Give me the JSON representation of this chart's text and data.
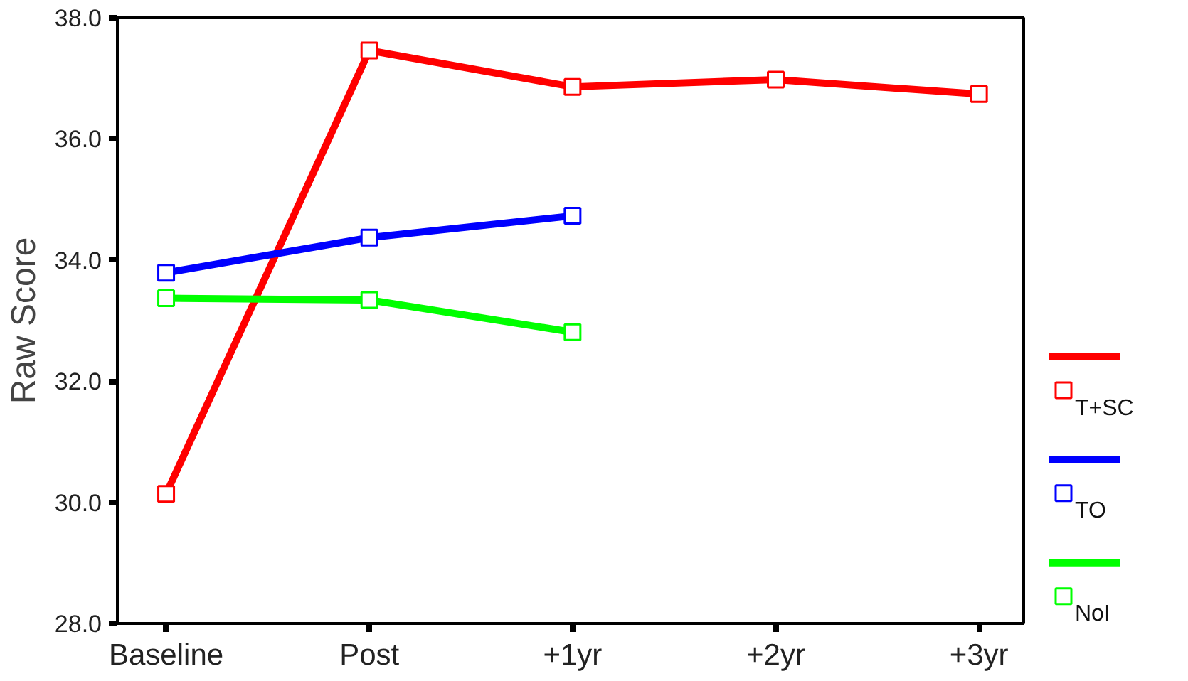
{
  "chart_data": {
    "type": "line",
    "ylabel": "Raw Score",
    "categories": [
      "Baseline",
      "Post",
      "+1yr",
      "+2yr",
      "+3yr"
    ],
    "series": [
      {
        "name": "T+SC",
        "color": "#ff0000",
        "values": [
          30.14,
          37.46,
          36.86,
          36.98,
          36.74
        ]
      },
      {
        "name": "TO",
        "color": "#0000ff",
        "values": [
          33.79,
          34.37,
          34.73,
          null,
          null
        ]
      },
      {
        "name": "NoI",
        "color": "#00ff00",
        "values": [
          33.37,
          33.34,
          32.81,
          null,
          null
        ]
      }
    ],
    "ylim": [
      28,
      38
    ],
    "yticks": [
      {
        "value": 28,
        "label": "28.0"
      },
      {
        "value": 30,
        "label": "30.0"
      },
      {
        "value": 32,
        "label": "32.0"
      },
      {
        "value": 34,
        "label": "34.0"
      },
      {
        "value": 36,
        "label": "36.0"
      },
      {
        "value": 38,
        "label": "38.0"
      }
    ],
    "marker": "square",
    "line_style": "solid",
    "grid": false,
    "legend": "right"
  }
}
